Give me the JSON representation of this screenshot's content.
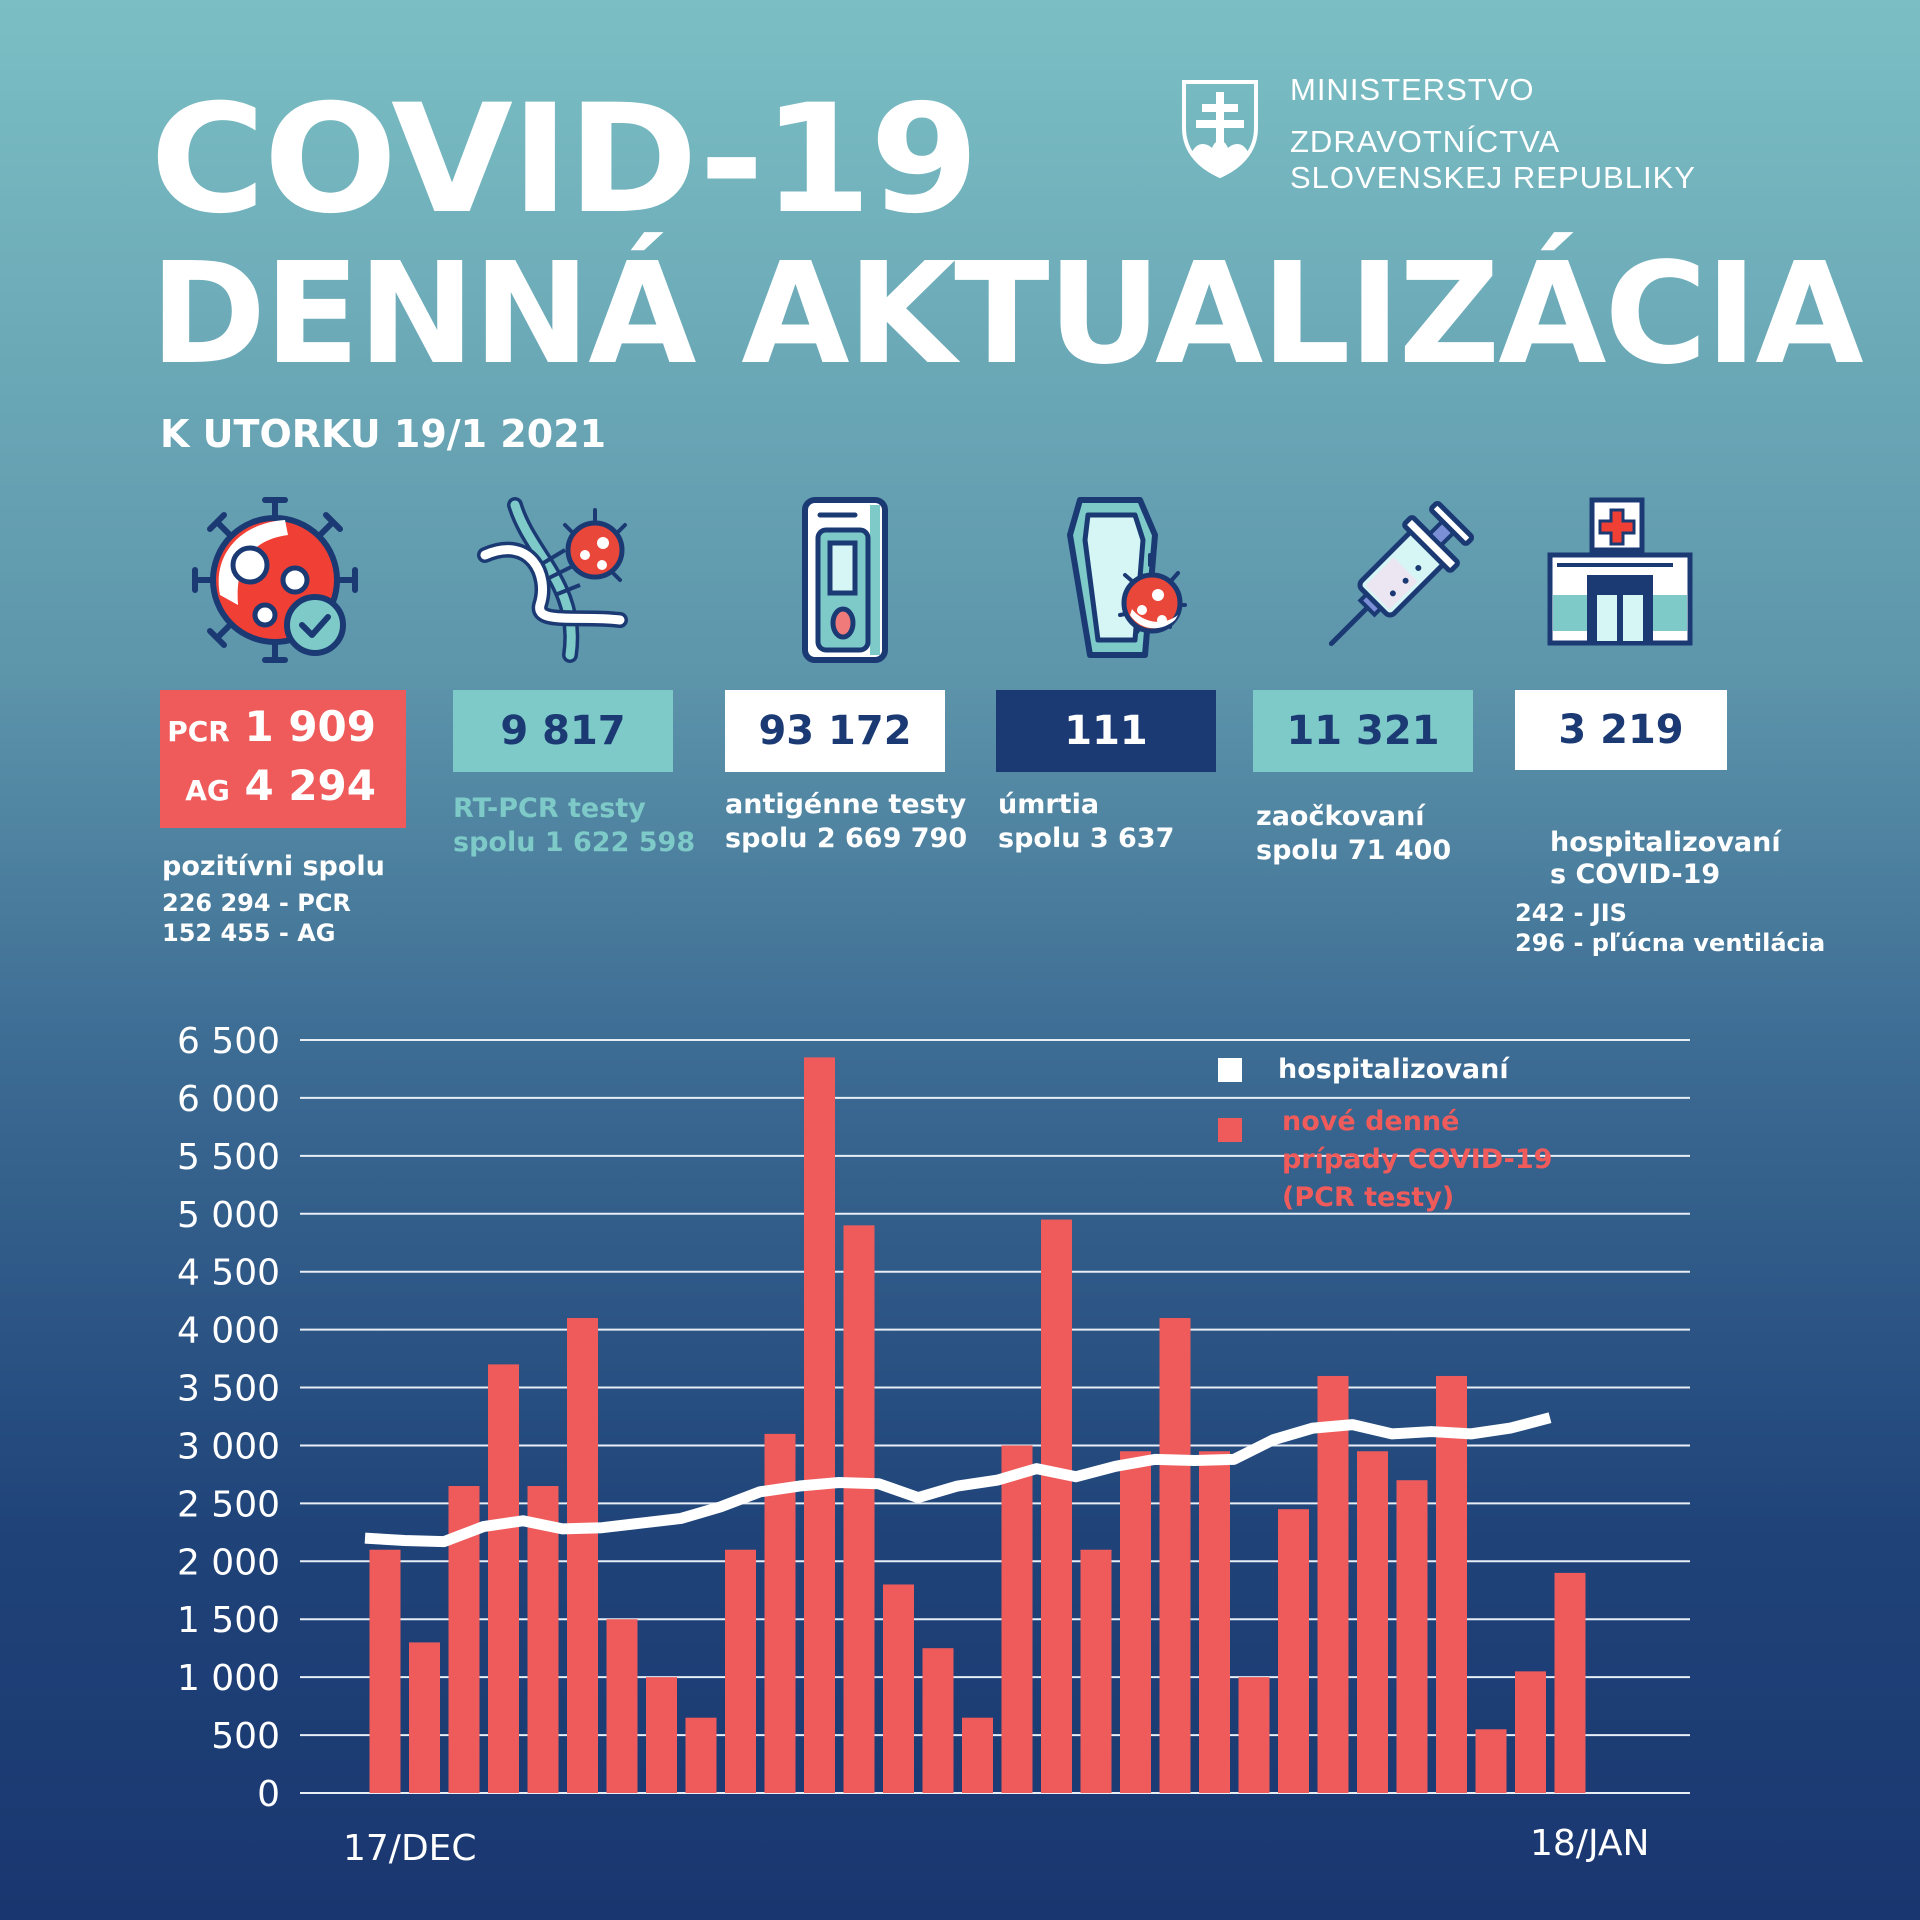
{
  "header": {
    "title_line1": "COVID-19",
    "title_line2": "DENNÁ AKTUALIZÁCIA",
    "date": "K UTORKU 19/1 2021",
    "ministry": [
      "MINISTERSTVO",
      "ZDRAVOTNÍCTVA",
      "SLOVENSKEJ REPUBLIKY"
    ]
  },
  "colors": {
    "red": "#ef5b5b",
    "teal": "#7ecac8",
    "navy": "#1b3a74",
    "white": "#ffffff"
  },
  "stats": [
    {
      "icon": "virus-check-icon",
      "lines": [
        {
          "prefix": "PCR",
          "value": "1 909"
        },
        {
          "prefix": "AG",
          "value": "4 294"
        }
      ],
      "label": "pozitívni spolu",
      "details": [
        "226 294 - PCR",
        "152 455 - AG"
      ]
    },
    {
      "icon": "dna-virus-icon",
      "value": "9 817",
      "label": "RT-PCR testy",
      "total": "spolu 1 622 598"
    },
    {
      "icon": "antigen-test-icon",
      "value": "93 172",
      "label": "antigénne testy",
      "total": "spolu 2 669 790"
    },
    {
      "icon": "coffin-virus-icon",
      "value": "111",
      "label": "úmrtia",
      "total": "spolu 3 637"
    },
    {
      "icon": "syringe-icon",
      "value": "11 321",
      "label": "zaočkovaní",
      "total": "spolu 71 400"
    },
    {
      "icon": "hospital-icon",
      "value": "3 219",
      "label": "hospitalizovaní",
      "label2": "s COVID-19",
      "details": [
        "242 - JIS",
        "296 - pľúcna ventilácia"
      ]
    }
  ],
  "chart_data": {
    "type": "bar",
    "title": "",
    "xlabel": "",
    "ylabel": "",
    "ylim": [
      0,
      6500
    ],
    "yticks": [
      0,
      500,
      1000,
      1500,
      2000,
      2500,
      3000,
      3500,
      4000,
      4500,
      5000,
      5500,
      6000,
      6500
    ],
    "ytick_labels": [
      "0",
      "500",
      "1 000",
      "1 500",
      "2 000",
      "2 500",
      "3 000",
      "3 500",
      "4 000",
      "4 500",
      "5 000",
      "5 500",
      "6 000",
      "6 500"
    ],
    "x_start_label": "17/DEC",
    "x_end_label": "18/JAN",
    "grid": true,
    "legend_position": "top-right",
    "legend": [
      {
        "name": "hospitalizovaní",
        "color": "#ffffff"
      },
      {
        "name_lines": [
          "nové denné",
          "prípady COVID-19",
          "(PCR testy)"
        ],
        "color": "#ef5b5b"
      }
    ],
    "series": [
      {
        "name": "nové denné prípady COVID-19 (PCR testy)",
        "type": "bar",
        "values": [
          2100,
          1300,
          2650,
          3700,
          2650,
          4100,
          1500,
          1000,
          650,
          2100,
          3100,
          6350,
          4900,
          1800,
          1250,
          650,
          3000,
          4950,
          2100,
          2950,
          4100,
          2950,
          1000,
          2450,
          3600,
          2950,
          2700,
          3600,
          550,
          1050,
          1900
        ]
      },
      {
        "name": "hospitalizovaní",
        "type": "line",
        "values": [
          2200,
          2180,
          2170,
          2300,
          2350,
          2280,
          2290,
          2330,
          2370,
          2470,
          2600,
          2650,
          2680,
          2670,
          2550,
          2650,
          2700,
          2800,
          2730,
          2820,
          2880,
          2870,
          2880,
          3050,
          3150,
          3180,
          3100,
          3120,
          3100,
          3150,
          3240
        ]
      }
    ]
  }
}
